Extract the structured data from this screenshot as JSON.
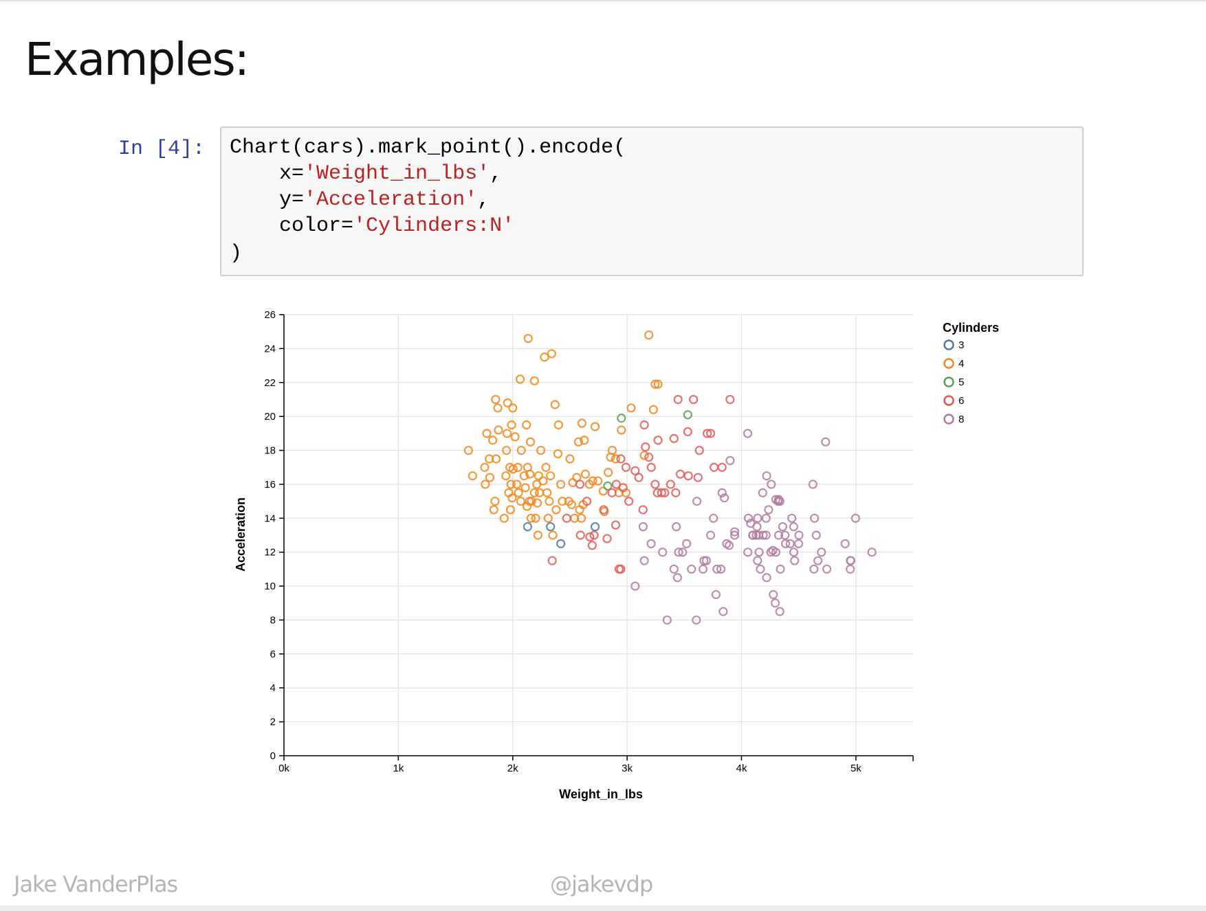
{
  "slide": {
    "title": "Examples:",
    "footer_left": "Jake VanderPlas",
    "footer_center": "@jakevdp"
  },
  "notebook": {
    "prompt": "In [4]:",
    "code": {
      "l1": "Chart(cars).mark_point().encode(",
      "l2_key": "x=",
      "l2_val": "'Weight_in_lbs'",
      "l2_end": ",",
      "l3_key": "y=",
      "l3_val": "'Acceleration'",
      "l3_end": ",",
      "l4_key": "color=",
      "l4_val": "'Cylinders:N'",
      "l5": ")"
    },
    "colors": {
      "prompt": "#303F9F",
      "string": "#BA2121",
      "cell_bg": "#f7f7f7"
    }
  },
  "chart_data": {
    "type": "scatter",
    "xlabel": "Weight_in_lbs",
    "ylabel": "Acceleration",
    "xlim": [
      0,
      5500
    ],
    "ylim": [
      0,
      26
    ],
    "xticks": [
      0,
      1000,
      2000,
      3000,
      4000,
      5000
    ],
    "xtick_labels": [
      "0k",
      "1k",
      "2k",
      "3k",
      "4k",
      "5k"
    ],
    "yticks": [
      0,
      2,
      4,
      6,
      8,
      10,
      12,
      14,
      16,
      18,
      20,
      22,
      24,
      26
    ],
    "ytick_labels": [
      "0",
      "2",
      "4",
      "6",
      "8",
      "10",
      "12",
      "14",
      "16",
      "18",
      "20",
      "22",
      "24",
      "26"
    ],
    "grid": true,
    "marker": "open-circle",
    "legend": {
      "title": "Cylinders",
      "position": "right"
    },
    "series": [
      {
        "name": "3",
        "color": "#4c78a8",
        "points": [
          [
            2130,
            13.5
          ],
          [
            2330,
            13.5
          ],
          [
            2420,
            12.5
          ],
          [
            2720,
            13.5
          ]
        ]
      },
      {
        "name": "4",
        "color": "#f58518",
        "points": [
          [
            1613,
            18.0
          ],
          [
            1649,
            16.5
          ],
          [
            1755,
            17.0
          ],
          [
            1760,
            16.0
          ],
          [
            1773,
            19.0
          ],
          [
            1795,
            17.5
          ],
          [
            1800,
            16.4
          ],
          [
            1825,
            18.6
          ],
          [
            1835,
            14.5
          ],
          [
            1845,
            15.0
          ],
          [
            1850,
            21.0
          ],
          [
            1855,
            17.5
          ],
          [
            1870,
            20.5
          ],
          [
            1875,
            19.2
          ],
          [
            1925,
            14.0
          ],
          [
            1940,
            16.5
          ],
          [
            1945,
            18.0
          ],
          [
            1950,
            19.0
          ],
          [
            1955,
            20.8
          ],
          [
            1965,
            15.5
          ],
          [
            1975,
            17.0
          ],
          [
            1980,
            14.5
          ],
          [
            1985,
            16.0
          ],
          [
            1990,
            19.5
          ],
          [
            1995,
            15.2
          ],
          [
            2000,
            20.5
          ],
          [
            2003,
            16.9
          ],
          [
            2020,
            18.8
          ],
          [
            2035,
            16.0
          ],
          [
            2045,
            17.0
          ],
          [
            2050,
            15.5
          ],
          [
            2065,
            22.2
          ],
          [
            2070,
            15.0
          ],
          [
            2075,
            18.0
          ],
          [
            2100,
            16.5
          ],
          [
            2110,
            15.8
          ],
          [
            2120,
            19.5
          ],
          [
            2125,
            14.7
          ],
          [
            2130,
            17.0
          ],
          [
            2135,
            24.6
          ],
          [
            2145,
            15.0
          ],
          [
            2150,
            16.6
          ],
          [
            2155,
            18.5
          ],
          [
            2160,
            14.0
          ],
          [
            2164,
            15.0
          ],
          [
            2189,
            15.5
          ],
          [
            2190,
            22.1
          ],
          [
            2200,
            14.0
          ],
          [
            2210,
            16.0
          ],
          [
            2215,
            14.9
          ],
          [
            2220,
            13.0
          ],
          [
            2226,
            16.5
          ],
          [
            2234,
            15.5
          ],
          [
            2245,
            18.0
          ],
          [
            2265,
            16.2
          ],
          [
            2278,
            23.5
          ],
          [
            2290,
            17.0
          ],
          [
            2300,
            15.5
          ],
          [
            2310,
            14.0
          ],
          [
            2320,
            15.0
          ],
          [
            2330,
            16.5
          ],
          [
            2340,
            23.7
          ],
          [
            2350,
            13.0
          ],
          [
            2370,
            20.7
          ],
          [
            2380,
            14.5
          ],
          [
            2395,
            17.8
          ],
          [
            2400,
            19.5
          ],
          [
            2420,
            16.0
          ],
          [
            2434,
            15.0
          ],
          [
            2490,
            15.0
          ],
          [
            2500,
            17.5
          ],
          [
            2515,
            14.8
          ],
          [
            2525,
            16.1
          ],
          [
            2540,
            14.0
          ],
          [
            2560,
            16.4
          ],
          [
            2575,
            18.5
          ],
          [
            2585,
            14.5
          ],
          [
            2600,
            14.0
          ],
          [
            2605,
            19.6
          ],
          [
            2615,
            14.8
          ],
          [
            2625,
            18.6
          ],
          [
            2635,
            16.6
          ],
          [
            2670,
            16.0
          ],
          [
            2700,
            16.2
          ],
          [
            2720,
            19.4
          ],
          [
            2745,
            16.2
          ],
          [
            2790,
            15.6
          ],
          [
            2800,
            14.4
          ],
          [
            2835,
            16.7
          ],
          [
            2855,
            17.6
          ],
          [
            2870,
            18.0
          ],
          [
            2900,
            17.5
          ],
          [
            2930,
            15.5
          ],
          [
            2950,
            19.2
          ],
          [
            2990,
            15.5
          ],
          [
            3035,
            20.5
          ],
          [
            3150,
            17.7
          ],
          [
            3190,
            24.8
          ],
          [
            3230,
            20.4
          ],
          [
            3245,
            21.9
          ],
          [
            3270,
            21.9
          ]
        ]
      },
      {
        "name": "5",
        "color": "#54a24b",
        "points": [
          [
            2830,
            15.9
          ],
          [
            2950,
            19.9
          ],
          [
            3530,
            20.1
          ]
        ]
      },
      {
        "name": "6",
        "color": "#e45756",
        "points": [
          [
            2472,
            14.0
          ],
          [
            2587,
            16.0
          ],
          [
            2592,
            13.0
          ],
          [
            2648,
            15.0
          ],
          [
            2674,
            12.9
          ],
          [
            2711,
            13.0
          ],
          [
            2795,
            14.5
          ],
          [
            2825,
            12.8
          ],
          [
            2868,
            15.5
          ],
          [
            2900,
            13.6
          ],
          [
            2905,
            16.0
          ],
          [
            2930,
            11.0
          ],
          [
            2945,
            17.5
          ],
          [
            2965,
            15.8
          ],
          [
            2990,
            17.0
          ],
          [
            3015,
            15.0
          ],
          [
            3070,
            16.8
          ],
          [
            3102,
            16.4
          ],
          [
            3139,
            14.5
          ],
          [
            3150,
            19.5
          ],
          [
            3160,
            18.2
          ],
          [
            3190,
            17.6
          ],
          [
            3211,
            17.0
          ],
          [
            3245,
            16.0
          ],
          [
            3265,
            15.5
          ],
          [
            3270,
            18.6
          ],
          [
            3302,
            15.5
          ],
          [
            3329,
            15.5
          ],
          [
            3380,
            16.0
          ],
          [
            3410,
            18.7
          ],
          [
            3425,
            15.5
          ],
          [
            3445,
            21.0
          ],
          [
            3465,
            16.6
          ],
          [
            3530,
            19.1
          ],
          [
            3535,
            16.5
          ],
          [
            3580,
            21.0
          ],
          [
            3620,
            16.4
          ],
          [
            3632,
            18.0
          ],
          [
            3700,
            19.0
          ],
          [
            3730,
            19.0
          ],
          [
            3760,
            17.0
          ],
          [
            3830,
            17.0
          ],
          [
            3900,
            21.0
          ],
          [
            2345,
            11.5
          ],
          [
            2695,
            12.4
          ],
          [
            2945,
            11.0
          ]
        ]
      },
      {
        "name": "8",
        "color": "#b279a2",
        "points": [
          [
            3070,
            10.0
          ],
          [
            3140,
            13.5
          ],
          [
            3150,
            11.5
          ],
          [
            3210,
            12.5
          ],
          [
            3310,
            12.0
          ],
          [
            3350,
            8.0
          ],
          [
            3410,
            11.0
          ],
          [
            3430,
            13.5
          ],
          [
            3440,
            10.5
          ],
          [
            3450,
            12.0
          ],
          [
            3485,
            12.0
          ],
          [
            3520,
            12.5
          ],
          [
            3563,
            11.0
          ],
          [
            3605,
            8.0
          ],
          [
            3610,
            15.0
          ],
          [
            3664,
            11.0
          ],
          [
            3672,
            11.5
          ],
          [
            3693,
            11.5
          ],
          [
            3730,
            13.0
          ],
          [
            3755,
            14.0
          ],
          [
            3777,
            9.5
          ],
          [
            3785,
            11.0
          ],
          [
            3820,
            11.0
          ],
          [
            3830,
            15.5
          ],
          [
            3840,
            8.5
          ],
          [
            3850,
            15.2
          ],
          [
            3870,
            12.5
          ],
          [
            3892,
            12.4
          ],
          [
            3900,
            17.4
          ],
          [
            3940,
            13.0
          ],
          [
            4054,
            19.0
          ],
          [
            4055,
            12.0
          ],
          [
            4060,
            14.0
          ],
          [
            4080,
            13.7
          ],
          [
            4098,
            13.0
          ],
          [
            4100,
            13.0
          ],
          [
            4129,
            13.0
          ],
          [
            4135,
            13.5
          ],
          [
            4140,
            11.5
          ],
          [
            4141,
            14.0
          ],
          [
            4150,
            13.0
          ],
          [
            4154,
            12.0
          ],
          [
            4165,
            11.0
          ],
          [
            4190,
            13.0
          ],
          [
            4215,
            13.0
          ],
          [
            4220,
            10.5
          ],
          [
            4237,
            14.5
          ],
          [
            4257,
            12.0
          ],
          [
            4274,
            12.1
          ],
          [
            4278,
            9.5
          ],
          [
            4295,
            9.0
          ],
          [
            4300,
            12.0
          ],
          [
            4320,
            15.0
          ],
          [
            4325,
            13.0
          ],
          [
            4335,
            8.5
          ],
          [
            4340,
            11.0
          ],
          [
            4360,
            13.5
          ],
          [
            4380,
            13.0
          ],
          [
            4385,
            12.5
          ],
          [
            4425,
            12.5
          ],
          [
            4440,
            14.0
          ],
          [
            4456,
            13.5
          ],
          [
            4457,
            12.0
          ],
          [
            4464,
            11.5
          ],
          [
            4499,
            12.5
          ],
          [
            4502,
            13.0
          ],
          [
            4633,
            11.0
          ],
          [
            4638,
            14.0
          ],
          [
            4654,
            13.0
          ],
          [
            4668,
            11.5
          ],
          [
            4699,
            12.0
          ],
          [
            4735,
            18.5
          ],
          [
            4746,
            11.0
          ],
          [
            4906,
            12.5
          ],
          [
            4951,
            11.0
          ],
          [
            4952,
            11.5
          ],
          [
            4955,
            11.5
          ],
          [
            4997,
            14.0
          ],
          [
            5140,
            12.0
          ],
          [
            4260,
            16.0
          ],
          [
            4185,
            15.5
          ],
          [
            4220,
            16.5
          ],
          [
            4300,
            15.1
          ],
          [
            4325,
            15.1
          ],
          [
            4335,
            15.0
          ],
          [
            4624,
            16.0
          ],
          [
            3940,
            13.2
          ],
          [
            4215,
            14.0
          ]
        ]
      }
    ]
  }
}
